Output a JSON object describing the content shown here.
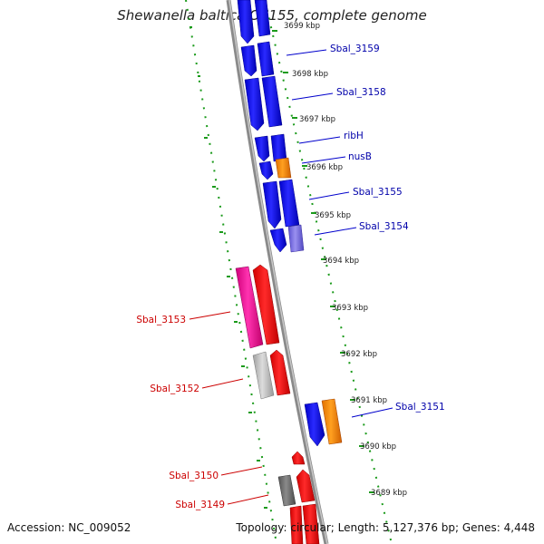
{
  "title": "Shewanella baltica OS155, complete genome",
  "accession": "Accession: NC_009052",
  "topology": "Topology: circular; Length: 5,127,376 bp; Genes: 4,448",
  "colors": {
    "forward_gene": "#1a1ae6",
    "forward_gene_light": "#7a6ae0",
    "rna_or_other": "#ff8c00",
    "reverse_gene": "#ff1010",
    "reverse_gene_pink": "#ff1aa0",
    "pseudo_gene": "#b8b8b8",
    "dark_gene": "#6a6a6a",
    "backbone": "#8a8a8a",
    "ruler": "#1a9a1a",
    "blue_label": "#0000aa",
    "red_label": "#cc0000"
  },
  "ruler_labels": [
    "3699 kbp",
    "3698 kbp",
    "3697 kbp",
    "3696 kbp",
    "3695 kbp",
    "3694 kbp",
    "3693 kbp",
    "3692 kbp",
    "3691 kbp",
    "3690 kbp",
    "3689 kbp"
  ],
  "gene_labels_forward": [
    "Sbal_3159",
    "Sbal_3158",
    "ribH",
    "nusB",
    "Sbal_3155",
    "Sbal_3154",
    "Sbal_3151"
  ],
  "gene_labels_reverse": [
    "Sbal_3153",
    "Sbal_3152",
    "Sbal_3150",
    "Sbal_3149"
  ]
}
